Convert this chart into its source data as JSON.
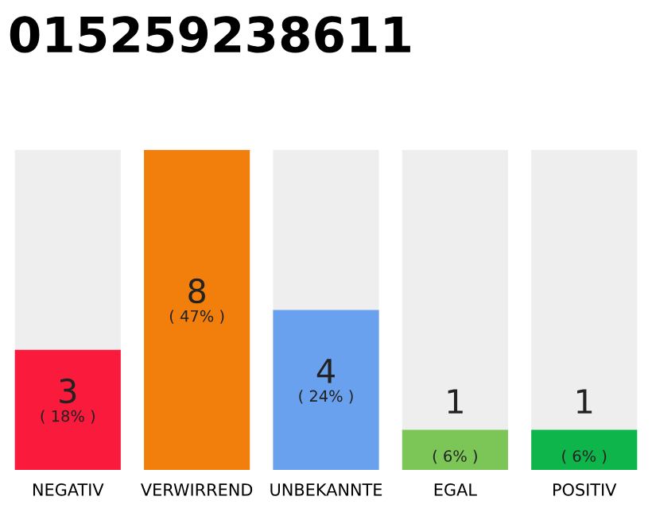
{
  "chart_data": {
    "type": "bar",
    "title": "015259238611",
    "categories": [
      "NEGATIV",
      "VERWIRREND",
      "UNBEKANNTE",
      "EGAL",
      "POSITIV"
    ],
    "values": [
      3,
      8,
      4,
      1,
      1
    ],
    "colors": [
      "#fa1a3c",
      "#f27f0c",
      "#6aa1ee",
      "#7cc657",
      "#0db54b"
    ],
    "value_labels": [
      "3\n( 18% )",
      "8\n( 47% )",
      "4\n( 24% )",
      "1\n( 6% )",
      "1\n( 6% )"
    ],
    "grid": false,
    "legend": false
  }
}
